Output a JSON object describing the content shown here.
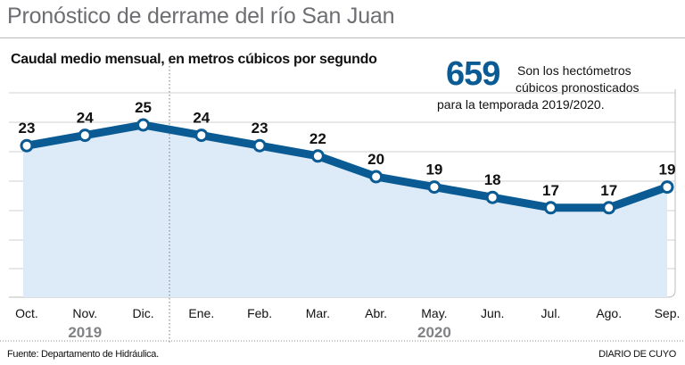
{
  "header": {
    "title": "Pronóstico de derrame del río San Juan"
  },
  "highlight": {
    "value": "659",
    "line1": "Son los hectómetros",
    "line2": "cúbicos pronosticados",
    "line3": "para la temporada 2019/2020."
  },
  "footer": {
    "source": "Fuente: Departamento de Hidráulica.",
    "brand": "DIARIO DE CUYO"
  },
  "colors": {
    "line": "#0a5b94",
    "fill": "#dcebf7",
    "grid": "#d9d9d9",
    "year": "#808285"
  },
  "chart_data": {
    "type": "area",
    "title": "Caudal medio mensual, en metros cúbicos por segundo",
    "categories": [
      "Oct.",
      "Nov.",
      "Dic.",
      "Ene.",
      "Feb.",
      "Mar.",
      "Abr.",
      "May.",
      "Jun.",
      "Jul.",
      "Ago.",
      "Sep."
    ],
    "values": [
      23,
      24,
      25,
      24,
      23,
      22,
      20,
      19,
      18,
      17,
      17,
      19
    ],
    "year_groups": [
      {
        "label": "2019",
        "from": 0,
        "to": 2
      },
      {
        "label": "2020",
        "from": 3,
        "to": 11
      }
    ],
    "grid": true,
    "data_labels": true
  }
}
